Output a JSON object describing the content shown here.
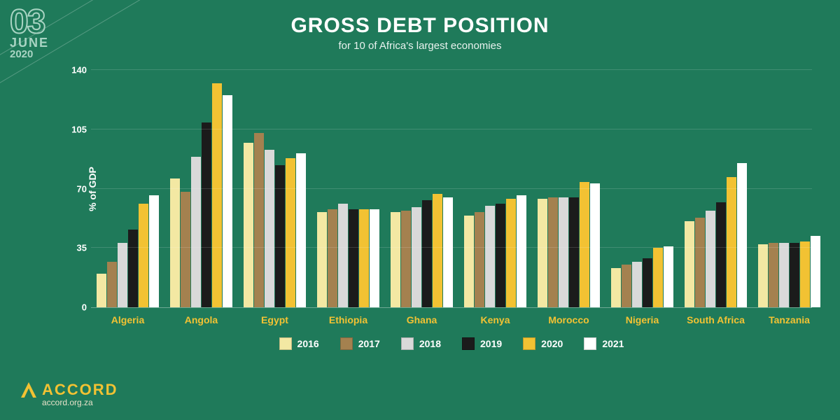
{
  "date": {
    "day": "03",
    "month": "JUNE",
    "year": "2020"
  },
  "title": "GROSS DEBT POSITION",
  "subtitle": "for 10 of Africa's largest economies",
  "ylabel": "% of GDP",
  "y": {
    "min": 0,
    "max": 140,
    "ticks": [
      0,
      35,
      70,
      105,
      140
    ]
  },
  "series": [
    {
      "label": "2016",
      "color": "#f3e8a3"
    },
    {
      "label": "2017",
      "color": "#a4814f"
    },
    {
      "label": "2018",
      "color": "#d9d9d9"
    },
    {
      "label": "2019",
      "color": "#1b1b1b"
    },
    {
      "label": "2020",
      "color": "#f2c233"
    },
    {
      "label": "2021",
      "color": "#ffffff"
    }
  ],
  "categories": [
    "Algeria",
    "Angola",
    "Egypt",
    "Ethiopia",
    "Ghana",
    "Kenya",
    "Morocco",
    "Nigeria",
    "South Africa",
    "Tanzania"
  ],
  "data": [
    [
      20,
      27,
      38,
      46,
      61,
      66
    ],
    [
      76,
      68,
      89,
      109,
      132,
      125
    ],
    [
      97,
      103,
      93,
      84,
      88,
      91
    ],
    [
      56,
      58,
      61,
      58,
      58,
      58
    ],
    [
      56,
      57,
      59,
      63,
      67,
      65
    ],
    [
      54,
      56,
      60,
      61,
      64,
      66
    ],
    [
      64,
      65,
      65,
      65,
      74,
      73
    ],
    [
      23,
      25,
      27,
      29,
      35,
      36
    ],
    [
      51,
      53,
      57,
      62,
      77,
      85
    ],
    [
      37,
      38,
      38,
      38,
      39,
      42
    ]
  ],
  "brand": {
    "name": "ACCORD",
    "url": "accord.org.za"
  },
  "bg": {
    "base": "#1f7a5a"
  }
}
